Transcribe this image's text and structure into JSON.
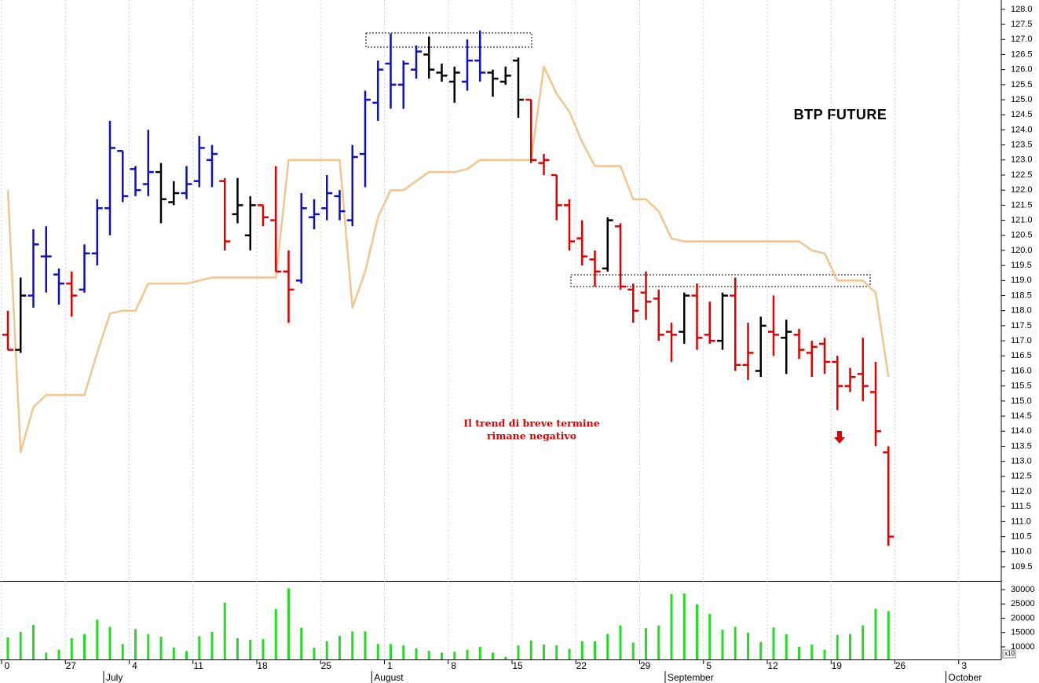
{
  "chart_data": [
    {
      "type": "ohlc",
      "title": "BTP FUTURE",
      "annotations": [
        "Il trend di breve termine",
        "rimane negativo"
      ],
      "categories": [
        "0",
        null,
        null,
        null,
        null,
        "27",
        null,
        null,
        null,
        null,
        "4",
        null,
        null,
        null,
        null,
        "11",
        null,
        null,
        null,
        null,
        "18",
        null,
        null,
        null,
        null,
        "25",
        null,
        null,
        null,
        null,
        "1",
        null,
        null,
        null,
        null,
        "8",
        null,
        null,
        null,
        null,
        "15",
        null,
        null,
        null,
        null,
        "22",
        null,
        null,
        null,
        null,
        "29",
        null,
        null,
        null,
        null,
        "5",
        null,
        null,
        null,
        null,
        "12",
        null,
        null,
        null,
        null,
        "19",
        null,
        null,
        null,
        null,
        "26",
        null,
        null,
        null,
        null,
        "3"
      ],
      "months": [
        null,
        null,
        null,
        null,
        null,
        null,
        null,
        null,
        "July",
        null,
        null,
        null,
        null,
        null,
        null,
        null,
        null,
        null,
        null,
        null,
        null,
        null,
        null,
        null,
        null,
        null,
        null,
        null,
        null,
        "August",
        null,
        null,
        null,
        null,
        null,
        null,
        null,
        null,
        null,
        null,
        null,
        null,
        null,
        null,
        null,
        null,
        null,
        null,
        null,
        null,
        null,
        null,
        "September",
        null,
        null,
        null,
        null,
        null,
        null,
        null,
        null,
        null,
        null,
        null,
        null,
        null,
        null,
        null,
        null,
        null,
        null,
        null,
        null,
        null,
        "October",
        null
      ],
      "open": [
        117.2,
        116.7,
        118.5,
        119.8,
        119.2,
        118.9,
        118.7,
        119.9,
        121.4,
        123.3,
        122.7,
        122.2,
        122.6,
        121.6,
        121.9,
        122.3,
        123.0,
        122.3,
        121.2,
        120.5,
        121.5,
        121.0,
        119.3,
        119.0,
        121.1,
        121.4,
        121.8,
        121.0,
        123.2,
        124.9,
        126.2,
        125.5,
        126.0,
        126.5,
        125.9,
        125.6,
        125.6,
        126.3,
        125.9,
        125.6,
        126.3,
        125.0,
        122.9,
        122.5,
        121.5,
        120.4,
        119.7,
        119.4,
        120.8,
        118.7,
        118.6,
        118.4,
        117.3,
        117.3,
        118.5,
        117.2,
        117.0,
        118.5,
        116.2,
        116.0,
        117.3,
        117.1,
        117.2,
        116.6,
        116.9,
        116.3,
        115.5,
        115.9,
        115.3,
        113.3,
        null,
        null,
        null,
        null,
        null,
        null
      ],
      "high": [
        118.0,
        119.1,
        120.7,
        120.8,
        119.4,
        119.3,
        120.2,
        121.7,
        124.3,
        123.3,
        122.8,
        124.0,
        122.9,
        122.3,
        122.8,
        123.8,
        123.5,
        122.4,
        122.4,
        121.8,
        121.5,
        122.8,
        120.0,
        121.9,
        121.7,
        122.5,
        122.0,
        123.5,
        125.3,
        126.3,
        127.2,
        126.3,
        126.8,
        127.1,
        126.2,
        126.1,
        127.0,
        127.3,
        126.0,
        126.1,
        126.4,
        125.0,
        123.2,
        122.5,
        121.7,
        121.0,
        120.0,
        121.1,
        120.9,
        118.9,
        119.3,
        118.7,
        117.6,
        118.6,
        118.9,
        118.3,
        118.6,
        119.1,
        117.6,
        117.8,
        118.5,
        117.7,
        117.4,
        117.0,
        117.1,
        116.5,
        116.1,
        117.1,
        116.3,
        113.5,
        null,
        null,
        null,
        null,
        null,
        null
      ],
      "low": [
        116.7,
        116.6,
        118.1,
        118.6,
        118.2,
        117.8,
        118.6,
        119.5,
        120.5,
        121.6,
        121.8,
        121.8,
        120.9,
        121.5,
        121.7,
        122.1,
        122.1,
        120.0,
        120.9,
        120.0,
        120.8,
        119.3,
        117.6,
        118.9,
        120.7,
        121.0,
        121.0,
        120.8,
        122.1,
        124.3,
        124.7,
        124.7,
        125.7,
        125.7,
        125.6,
        124.9,
        125.3,
        125.6,
        125.1,
        125.5,
        124.4,
        122.9,
        122.5,
        121.0,
        120.0,
        119.5,
        118.8,
        119.3,
        118.7,
        117.6,
        117.7,
        117.0,
        116.3,
        116.9,
        116.7,
        116.9,
        116.7,
        116.0,
        115.7,
        115.8,
        116.5,
        115.9,
        116.4,
        115.8,
        115.9,
        114.7,
        115.3,
        115.0,
        113.5,
        110.2,
        null,
        null,
        null,
        null,
        null,
        null
      ],
      "close": [
        116.7,
        118.5,
        120.2,
        119.8,
        118.9,
        118.5,
        119.9,
        121.4,
        123.4,
        121.8,
        122.0,
        122.6,
        121.7,
        121.9,
        122.2,
        123.4,
        123.2,
        120.3,
        121.5,
        121.5,
        121.1,
        119.3,
        118.7,
        121.4,
        121.2,
        121.9,
        121.3,
        123.1,
        125.0,
        126.0,
        125.5,
        126.2,
        126.6,
        126.0,
        125.8,
        125.9,
        126.3,
        125.9,
        125.7,
        125.8,
        125.0,
        123.0,
        123.0,
        121.5,
        120.3,
        119.8,
        119.3,
        121.0,
        118.8,
        118.0,
        118.3,
        117.2,
        117.2,
        118.5,
        117.1,
        117.0,
        118.5,
        116.2,
        116.6,
        117.5,
        117.2,
        117.3,
        116.7,
        116.8,
        116.3,
        115.5,
        115.8,
        115.5,
        114.0,
        110.5,
        null,
        null,
        null,
        null,
        null,
        null
      ],
      "colors": [
        "#e00000",
        "#000000",
        "#1010c0",
        "#1010c0",
        "#1010c0",
        "#e00000",
        "#1010c0",
        "#1010c0",
        "#1010c0",
        "#1010c0",
        "#1010c0",
        "#1010c0",
        "#000000",
        "#000000",
        "#1010c0",
        "#1010c0",
        "#1010c0",
        "#e00000",
        "#000000",
        "#000000",
        "#e00000",
        "#e00000",
        "#e00000",
        "#1010c0",
        "#1010c0",
        "#1010c0",
        "#1010c0",
        "#1010c0",
        "#1010c0",
        "#1010c0",
        "#1010c0",
        "#1010c0",
        "#1010c0",
        "#000000",
        "#000000",
        "#000000",
        "#1010c0",
        "#1010c0",
        "#000000",
        "#000000",
        "#000000",
        "#e00000",
        "#e00000",
        "#e00000",
        "#e00000",
        "#e00000",
        "#e00000",
        "#000000",
        "#e00000",
        "#e00000",
        "#e00000",
        "#e00000",
        "#e00000",
        "#000000",
        "#e00000",
        "#e00000",
        "#000000",
        "#e00000",
        "#e00000",
        "#000000",
        "#e00000",
        "#000000",
        "#e00000",
        "#e00000",
        "#e00000",
        "#e00000",
        "#e00000",
        "#e00000",
        "#e00000",
        "#e00000",
        null,
        null,
        null,
        null,
        null,
        null
      ],
      "stop_line": {
        "color": "#f2c48e",
        "values": [
          122.0,
          113.3,
          114.8,
          115.2,
          115.2,
          115.2,
          115.2,
          116.6,
          117.9,
          118.0,
          118.0,
          118.9,
          118.9,
          118.9,
          118.9,
          119.0,
          119.1,
          119.1,
          119.1,
          119.1,
          119.1,
          119.1,
          123.0,
          123.0,
          123.0,
          123.0,
          123.0,
          118.1,
          119.3,
          121.1,
          122.0,
          122.0,
          122.3,
          122.6,
          122.6,
          122.6,
          122.7,
          123.0,
          123.0,
          123.0,
          123.0,
          123.0,
          126.1,
          125.2,
          124.6,
          123.6,
          122.8,
          122.8,
          122.8,
          121.7,
          121.7,
          121.3,
          120.4,
          120.3,
          120.3,
          120.3,
          120.3,
          120.3,
          120.3,
          120.3,
          120.3,
          120.3,
          120.3,
          120.0,
          119.9,
          119.0,
          119.0,
          119.0,
          118.6,
          115.8,
          null,
          null,
          null,
          null,
          null,
          null
        ]
      },
      "ylim": [
        109.03,
        128.31
      ],
      "yticks": [
        109.5,
        {
          "value": 110,
          "label": "110.0"
        },
        110.5,
        {
          "value": 111,
          "label": "111.0"
        },
        111.5,
        {
          "value": 112,
          "label": "112.0"
        },
        112.5,
        {
          "value": 113,
          "label": "113.0"
        },
        113.5,
        {
          "value": 114,
          "label": "114.0"
        },
        114.5,
        {
          "value": 115,
          "label": "115.0"
        },
        115.5,
        {
          "value": 116,
          "label": "116.0"
        },
        116.5,
        {
          "value": 117,
          "label": "117.0"
        },
        117.5,
        {
          "value": 118,
          "label": "118.0"
        },
        118.5,
        {
          "value": 119,
          "label": "119.0"
        },
        119.5,
        {
          "value": 120,
          "label": "120.0"
        },
        120.5,
        {
          "value": 121,
          "label": "121.0"
        },
        121.5,
        {
          "value": 122,
          "label": "122.0"
        },
        122.5,
        {
          "value": 123,
          "label": "123.0"
        },
        123.5,
        {
          "value": 124,
          "label": "124.0"
        },
        124.5,
        {
          "value": 125,
          "label": "125.0"
        },
        125.5,
        {
          "value": 126,
          "label": "126.0"
        },
        126.5,
        {
          "value": 127,
          "label": "127.0"
        },
        127.5,
        {
          "value": 128,
          "label": "128.0"
        }
      ]
    },
    {
      "type": "bar",
      "color": "#22dd22",
      "axis_note": "x10",
      "values": [
        13300,
        15200,
        17700,
        8000,
        9000,
        13000,
        14500,
        19500,
        17000,
        11000,
        16200,
        14500,
        13500,
        9800,
        8500,
        13700,
        15200,
        25500,
        13000,
        12500,
        12700,
        23200,
        30500,
        16700,
        9700,
        12000,
        13800,
        15400,
        15400,
        11000,
        11000,
        10500,
        9500,
        8600,
        8000,
        8300,
        9000,
        10000,
        8000,
        6500,
        10500,
        12300,
        10800,
        10500,
        9300,
        12000,
        12000,
        14500,
        17500,
        11500,
        16500,
        17500,
        28500,
        28700,
        24900,
        21500,
        16000,
        17000,
        15000,
        11700,
        16800,
        14400,
        10000,
        10800,
        9000,
        14200,
        14500,
        17500,
        23300,
        22500,
        null,
        null,
        null,
        null,
        null,
        null
      ],
      "ylim": [
        5600,
        32500
      ],
      "yticks": [
        10000,
        15000,
        20000,
        25000,
        30000
      ]
    }
  ]
}
